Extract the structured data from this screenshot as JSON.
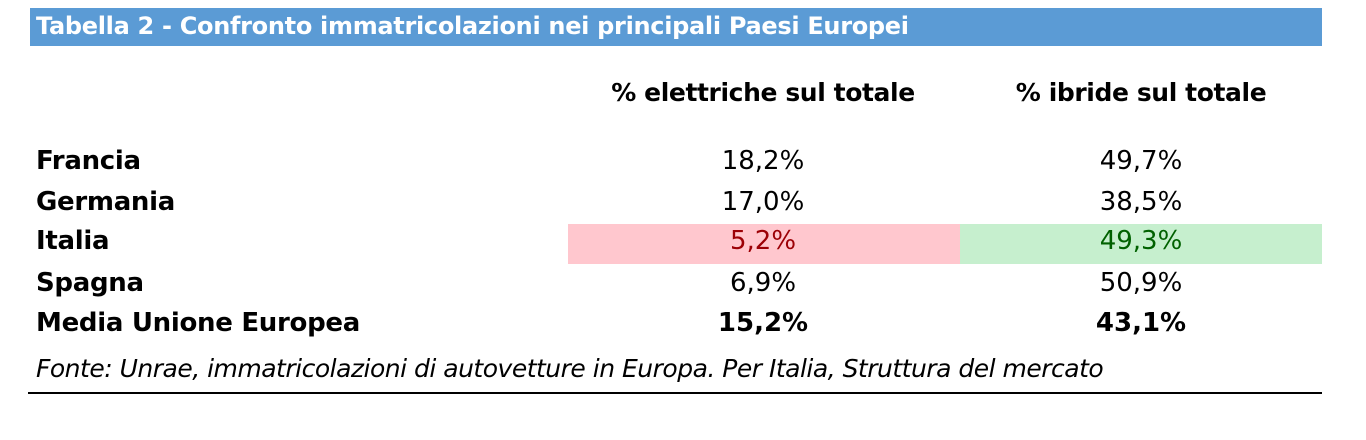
{
  "title": "Tabella 2 - Confronto immatricolazioni nei principali Paesi Europei",
  "columns": [
    "% elettriche sul totale",
    "% ibride sul totale"
  ],
  "rows": [
    {
      "country": "Francia",
      "electric": "18,2%",
      "hybrid": "49,7%"
    },
    {
      "country": "Germania",
      "electric": "17,0%",
      "hybrid": "38,5%"
    },
    {
      "country": "Italia",
      "electric": "5,2%",
      "hybrid": "49,3%"
    },
    {
      "country": "Spagna",
      "electric": "6,9%",
      "hybrid": "50,9%"
    },
    {
      "country": "Media Unione Europea",
      "electric": "15,2%",
      "hybrid": "43,1%"
    }
  ],
  "source": "Fonte: Unrae, immatricolazioni di autovetture in Europa. Per Italia, Struttura del mercato",
  "colors": {
    "title_bg": "#5b9bd5",
    "highlight_bad_bg": "#ffc7ce",
    "highlight_bad_text": "#9c0006",
    "highlight_good_bg": "#c6efce",
    "highlight_good_text": "#006100"
  }
}
